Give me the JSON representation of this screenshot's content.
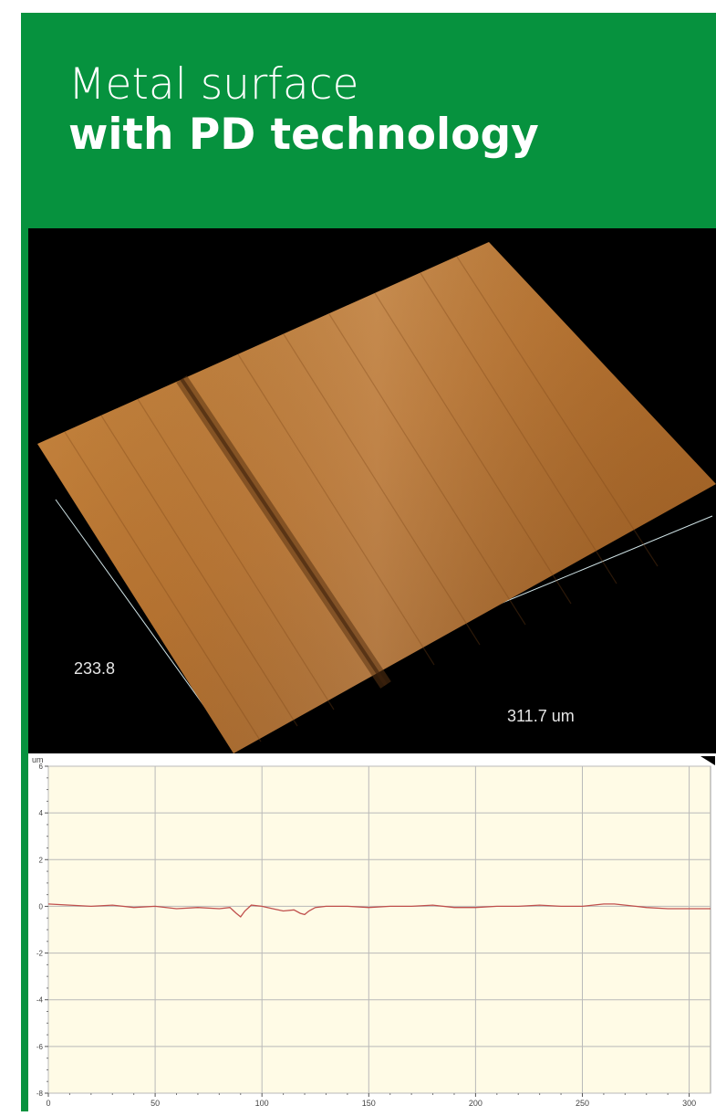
{
  "header": {
    "title_line1": "Metal surface",
    "title_line2": "with PD technology",
    "accent": "#06923e"
  },
  "surface_image": {
    "depth_label": "233.8",
    "width_label": "311.7 um"
  },
  "chart_data": {
    "type": "line",
    "ylabel": "um",
    "xlim": [
      0,
      310
    ],
    "ylim": [
      -8,
      6
    ],
    "xticks": [
      0,
      50,
      100,
      150,
      200,
      250,
      300
    ],
    "yticks": [
      -8,
      -6,
      -4,
      -2,
      0,
      2,
      4,
      6
    ],
    "ytick_labels": [
      "-8",
      "-6",
      "-4",
      "-2",
      "0",
      "2",
      "4",
      "6"
    ],
    "grid": true,
    "series": [
      {
        "color": "#c0504d",
        "x": [
          0,
          10,
          20,
          30,
          40,
          50,
          60,
          70,
          80,
          85,
          88,
          90,
          92,
          95,
          100,
          105,
          110,
          115,
          118,
          120,
          122,
          125,
          130,
          140,
          150,
          160,
          170,
          180,
          190,
          200,
          210,
          220,
          230,
          240,
          250,
          260,
          265,
          270,
          275,
          280,
          290,
          300,
          310
        ],
        "y": [
          0.1,
          0.05,
          0.0,
          0.05,
          -0.05,
          0.0,
          -0.1,
          -0.05,
          -0.1,
          -0.05,
          -0.3,
          -0.45,
          -0.2,
          0.05,
          0.0,
          -0.1,
          -0.2,
          -0.15,
          -0.3,
          -0.35,
          -0.2,
          -0.05,
          0.0,
          0.0,
          -0.05,
          0.0,
          0.0,
          0.05,
          -0.05,
          -0.05,
          0.0,
          0.0,
          0.05,
          0.0,
          0.0,
          0.1,
          0.1,
          0.05,
          0.0,
          -0.05,
          -0.1,
          -0.1,
          -0.1
        ]
      }
    ]
  }
}
